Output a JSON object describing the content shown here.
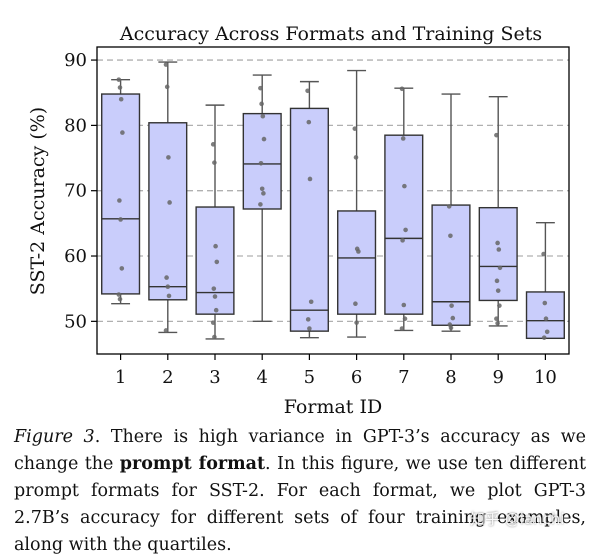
{
  "chart_data": {
    "type": "box",
    "title": "Accuracy Across Formats and Training Sets",
    "xlabel": "Format ID",
    "ylabel": "SST-2 Accuracy (%)",
    "ylim": [
      45,
      92
    ],
    "yticks": [
      50,
      60,
      70,
      80,
      90
    ],
    "grid": "horizontal dashed",
    "box_color": "#c9cdfb",
    "categories": [
      "1",
      "2",
      "3",
      "4",
      "5",
      "6",
      "7",
      "8",
      "9",
      "10"
    ],
    "boxes": [
      {
        "id": "1",
        "whisker_low": 52.7,
        "q1": 54.2,
        "median": 65.7,
        "q3": 84.8,
        "whisker_high": 87.0,
        "points": [
          87.0,
          85.8,
          84.0,
          78.9,
          68.5,
          65.6,
          58.1,
          54.1,
          53.4
        ]
      },
      {
        "id": "2",
        "whisker_low": 48.3,
        "q1": 53.3,
        "median": 55.3,
        "q3": 80.4,
        "whisker_high": 89.7,
        "points": [
          89.3,
          85.9,
          75.1,
          68.2,
          56.7,
          55.3,
          53.9,
          48.6
        ]
      },
      {
        "id": "3",
        "whisker_low": 47.3,
        "q1": 51.1,
        "median": 54.4,
        "q3": 67.5,
        "whisker_high": 83.1,
        "points": [
          77.1,
          74.3,
          61.5,
          59.1,
          55.0,
          53.8,
          51.7,
          49.8,
          47.6
        ]
      },
      {
        "id": "4",
        "whisker_low": 50.0,
        "q1": 67.2,
        "median": 74.1,
        "q3": 81.8,
        "whisker_high": 87.7,
        "points": [
          85.7,
          83.3,
          81.4,
          77.9,
          74.2,
          70.3,
          69.6,
          67.9
        ]
      },
      {
        "id": "5",
        "whisker_low": 47.5,
        "q1": 48.5,
        "median": 51.7,
        "q3": 82.6,
        "whisker_high": 86.7,
        "points": [
          85.3,
          80.5,
          71.8,
          53.0,
          50.3,
          48.9
        ]
      },
      {
        "id": "6",
        "whisker_low": 47.6,
        "q1": 51.1,
        "median": 59.7,
        "q3": 66.9,
        "whisker_high": 88.4,
        "points": [
          79.5,
          75.1,
          61.1,
          60.7,
          52.7,
          49.8
        ]
      },
      {
        "id": "7",
        "whisker_low": 48.6,
        "q1": 51.1,
        "median": 62.7,
        "q3": 78.5,
        "whisker_high": 85.7,
        "points": [
          85.6,
          78.0,
          70.7,
          64.0,
          62.4,
          52.5,
          50.4,
          48.9
        ]
      },
      {
        "id": "8",
        "whisker_low": 48.5,
        "q1": 49.4,
        "median": 53.0,
        "q3": 67.8,
        "whisker_high": 84.8,
        "points": [
          67.6,
          63.1,
          52.4,
          50.5,
          49.5,
          49.0
        ]
      },
      {
        "id": "9",
        "whisker_low": 49.3,
        "q1": 53.2,
        "median": 58.4,
        "q3": 67.4,
        "whisker_high": 84.4,
        "points": [
          78.5,
          62.0,
          61.0,
          58.2,
          56.2,
          54.7,
          52.4,
          50.4,
          49.7
        ]
      },
      {
        "id": "10",
        "whisker_low": 47.4,
        "q1": 47.4,
        "median": 50.1,
        "q3": 54.5,
        "whisker_high": 65.1,
        "points": [
          60.3,
          52.8,
          50.4,
          48.4,
          47.5
        ]
      }
    ]
  },
  "caption": {
    "fig_label": "Figure 3",
    "part1": ". There is high variance in GPT-3’s accuracy as we change the ",
    "bold": "prompt format",
    "part2": ". In this figure, we use ten different prompt formats for SST-2. For each format, we plot GPT-3 2.7B’s accuracy for different sets of four training examples, along with the quartiles."
  },
  "watermark": "知乎 @ianchi"
}
